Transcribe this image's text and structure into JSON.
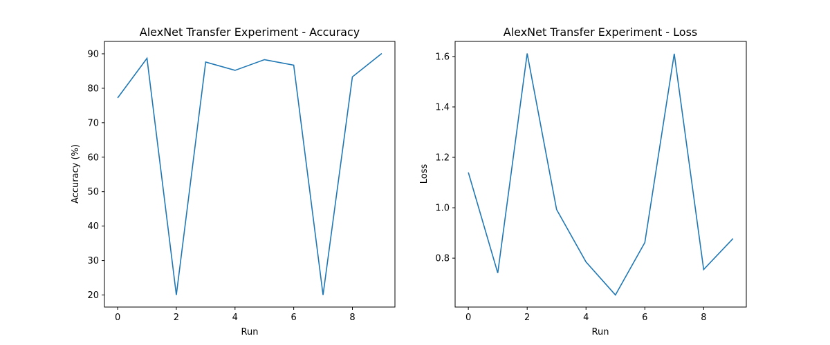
{
  "chart_data": [
    {
      "type": "line",
      "title": "AlexNet Transfer Experiment - Accuracy",
      "xlabel": "Run",
      "ylabel": "Accuracy (%)",
      "x": [
        0,
        1,
        2,
        3,
        4,
        5,
        6,
        7,
        8,
        9
      ],
      "series": [
        {
          "color": "#1f77b4",
          "values": [
            77.2,
            88.7,
            20.0,
            87.6,
            85.2,
            88.3,
            86.7,
            20.0,
            83.3,
            90.1
          ]
        }
      ],
      "xlim": [
        -0.45,
        9.45
      ],
      "ylim": [
        16.5,
        93.6
      ],
      "xticks": [
        0,
        2,
        4,
        6,
        8
      ],
      "yticks": [
        20,
        30,
        40,
        50,
        60,
        70,
        80,
        90
      ],
      "grid": false
    },
    {
      "type": "line",
      "title": "AlexNet Transfer Experiment - Loss",
      "xlabel": "Run",
      "ylabel": "Loss",
      "x": [
        0,
        1,
        2,
        3,
        4,
        5,
        6,
        7,
        8,
        9
      ],
      "series": [
        {
          "color": "#1f77b4",
          "values": [
            1.14,
            0.741,
            1.612,
            0.993,
            0.785,
            0.654,
            0.862,
            1.611,
            0.755,
            0.878
          ]
        }
      ],
      "xlim": [
        -0.45,
        9.45
      ],
      "ylim": [
        0.606,
        1.66
      ],
      "xticks": [
        0,
        2,
        4,
        6,
        8
      ],
      "yticks": [
        0.8,
        1.0,
        1.2,
        1.4,
        1.6
      ],
      "ytick_labels": [
        "0.8",
        "1.0",
        "1.2",
        "1.4",
        "1.6"
      ],
      "grid": false
    }
  ]
}
